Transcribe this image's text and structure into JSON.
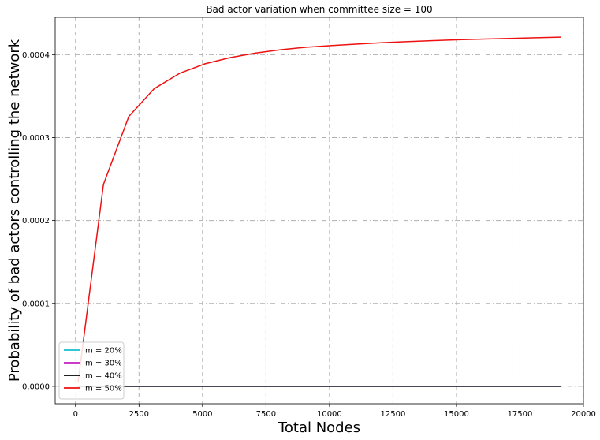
{
  "chart_data": {
    "type": "line",
    "title": "Bad actor variation when committee size = 100",
    "xlabel": "Total Nodes",
    "ylabel": "Probability of bad actors controlling the network",
    "xlim": [
      -800,
      20000
    ],
    "ylim": [
      -2.1e-05,
      0.000445
    ],
    "xticks": [
      0,
      2500,
      5000,
      7500,
      10000,
      12500,
      15000,
      17500,
      20000
    ],
    "xtick_labels": [
      "0",
      "2500",
      "5000",
      "7500",
      "10000",
      "12500",
      "15000",
      "17500",
      "20000"
    ],
    "yticks": [
      0,
      0.0001,
      0.0002,
      0.0003,
      0.0004
    ],
    "ytick_labels": [
      "0.0000",
      "0.0001",
      "0.0002",
      "0.0003",
      "0.0004"
    ],
    "grid": true,
    "legend_position": "lower-left",
    "series": [
      {
        "name": "m = 20%",
        "color": "#17becf",
        "x": [
          100,
          19100
        ],
        "y": [
          0,
          0
        ]
      },
      {
        "name": "m = 30%",
        "color": "#c020c0",
        "x": [
          100,
          19100
        ],
        "y": [
          0,
          0
        ]
      },
      {
        "name": "m = 40%",
        "color": "#000000",
        "x": [
          100,
          19100
        ],
        "y": [
          0,
          0
        ]
      },
      {
        "name": "m = 50%",
        "color": "#ee1111",
        "x": [
          100,
          1100,
          2100,
          3100,
          4100,
          5100,
          6100,
          7100,
          8100,
          9100,
          10100,
          11100,
          12100,
          13100,
          14100,
          15100,
          16100,
          17100,
          18100,
          19100
        ],
        "y": [
          4.6e-06,
          0.0002435,
          0.0003255,
          0.000359,
          0.0003775,
          0.000389,
          0.0003965,
          0.000402,
          0.000406,
          0.000409,
          0.000411,
          0.0004128,
          0.0004145,
          0.0004158,
          0.000417,
          0.000418,
          0.0004188,
          0.0004196,
          0.0004204,
          0.0004211
        ]
      }
    ]
  }
}
